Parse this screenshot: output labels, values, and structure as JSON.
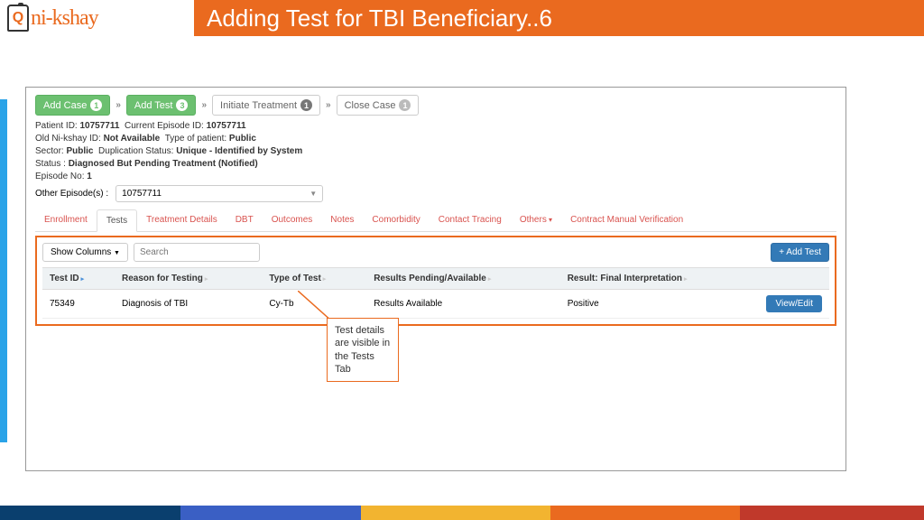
{
  "header": {
    "logo_text": "ni-kshay",
    "title": "Adding Test for TBI Beneficiary..6"
  },
  "colors": {
    "brand": "#ea6a1f",
    "accent_blue": "#2aa3e8",
    "green": "#6cc070",
    "btn_blue": "#337ab7",
    "tab_red": "#d9534f",
    "footer": [
      "#0a3f6e",
      "#3a5fc4",
      "#f2b430",
      "#ea6a1f",
      "#c0392b"
    ]
  },
  "crumbs": {
    "add_case": "Add Case",
    "add_case_badge": "1",
    "add_test": "Add Test",
    "add_test_badge": "3",
    "initiate": "Initiate Treatment",
    "initiate_badge": "1",
    "close": "Close Case",
    "close_badge": "1"
  },
  "meta": {
    "l1_a": "Patient ID:",
    "l1_av": "10757711",
    "l1_b": "Current Episode ID:",
    "l1_bv": "10757711",
    "l2_a": "Old Ni-kshay ID:",
    "l2_av": "Not Available",
    "l2_b": "Type of patient:",
    "l2_bv": "Public",
    "l3_a": "Sector:",
    "l3_av": "Public",
    "l3_b": "Duplication Status:",
    "l3_bv": "Unique - Identified by System",
    "l4_a": "Status :",
    "l4_av": "Diagnosed But Pending Treatment (Notified)",
    "l5_a": "Episode No:",
    "l5_av": "1",
    "other_ep_label": "Other Episode(s) :",
    "other_ep_value": "10757711"
  },
  "tabs": {
    "items": [
      "Enrollment",
      "Tests",
      "Treatment Details",
      "DBT",
      "Outcomes",
      "Notes",
      "Comorbidity",
      "Contact Tracing",
      "Others",
      "Contract Manual Verification"
    ],
    "active_index": 1
  },
  "tests_panel": {
    "show_cols": "Show Columns",
    "search_ph": "Search",
    "add_test": "+  Add Test",
    "columns": [
      "Test ID",
      "Reason for Testing",
      "Type of Test",
      "Results Pending/Available",
      "Result: Final Interpretation",
      ""
    ],
    "row": {
      "id": "75349",
      "reason": "Diagnosis of TBI",
      "type": "Cy-Tb",
      "results": "Results Available",
      "interp": "Positive",
      "action": "View/Edit"
    }
  },
  "callout": "Test details are visible in the Tests Tab"
}
